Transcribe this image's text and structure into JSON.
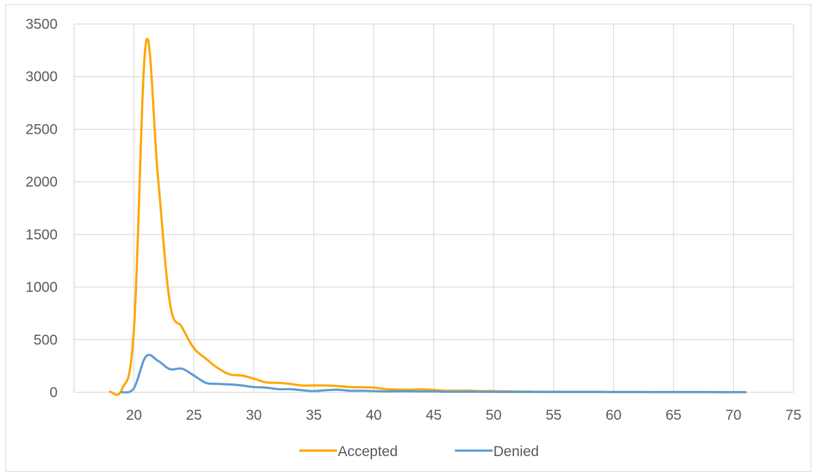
{
  "chart_data": {
    "type": "line",
    "title": "",
    "xlabel": "",
    "ylabel": "",
    "xlim": [
      15,
      75
    ],
    "ylim": [
      0,
      3500
    ],
    "x_ticks": [
      "20",
      "25",
      "30",
      "35",
      "40",
      "45",
      "50",
      "55",
      "60",
      "65",
      "70",
      "75"
    ],
    "y_ticks": [
      "0",
      "500",
      "1000",
      "1500",
      "2000",
      "2500",
      "3000",
      "3500"
    ],
    "grid": true,
    "legend_position": "bottom",
    "x": [
      18,
      19,
      20,
      21,
      22,
      23,
      24,
      25,
      26,
      27,
      28,
      29,
      30,
      31,
      32,
      33,
      34,
      35,
      36,
      37,
      38,
      39,
      40,
      41,
      42,
      43,
      44,
      45,
      46,
      47,
      48,
      49,
      50,
      51,
      52,
      53,
      54,
      55,
      56,
      57,
      58,
      59,
      60,
      61,
      62,
      63,
      64,
      65,
      66,
      67,
      68,
      69,
      70,
      71
    ],
    "series": [
      {
        "name": "Accepted",
        "color": "#ffa500",
        "values": [
          5,
          30,
          600,
          3320,
          2050,
          850,
          620,
          420,
          320,
          230,
          170,
          160,
          130,
          95,
          90,
          80,
          65,
          65,
          65,
          60,
          50,
          48,
          45,
          30,
          25,
          25,
          28,
          22,
          15,
          15,
          15,
          12,
          12,
          10,
          8,
          7,
          6,
          6,
          5,
          5,
          5,
          5,
          4,
          4,
          4,
          3,
          3,
          3,
          3,
          3,
          3,
          2,
          2,
          2
        ]
      },
      {
        "name": "Denied",
        "color": "#5b9bd5",
        "values": [
          null,
          0,
          40,
          340,
          300,
          220,
          225,
          160,
          90,
          80,
          75,
          65,
          50,
          45,
          30,
          30,
          20,
          12,
          20,
          25,
          15,
          15,
          12,
          8,
          10,
          10,
          8,
          8,
          6,
          6,
          6,
          5,
          5,
          4,
          4,
          4,
          3,
          3,
          3,
          3,
          3,
          3,
          2,
          2,
          2,
          2,
          2,
          2,
          2,
          2,
          2,
          1,
          1,
          1
        ]
      }
    ]
  }
}
